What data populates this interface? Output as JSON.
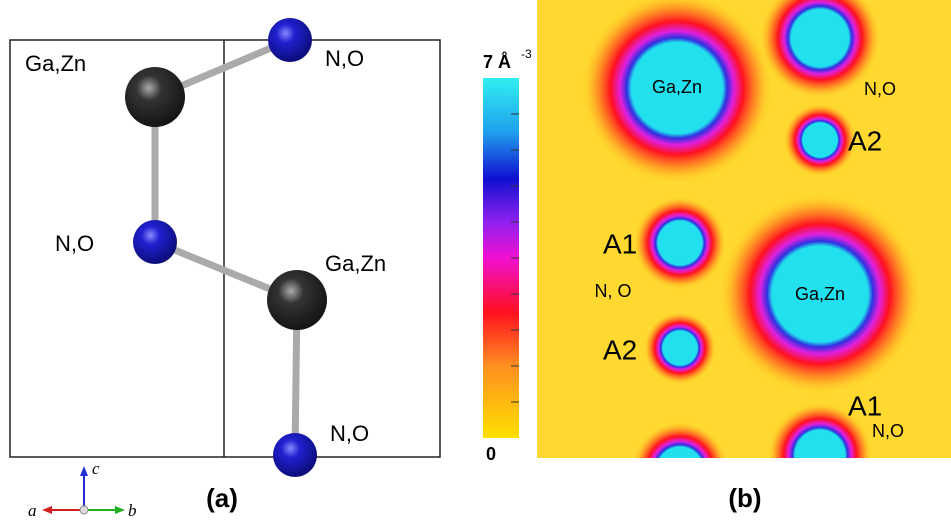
{
  "panel_a": {
    "atoms": [
      {
        "label": "Ga,Zn"
      },
      {
        "label": "N,O"
      },
      {
        "label": "N,O"
      },
      {
        "label": "Ga,Zn"
      },
      {
        "label": "N,O"
      }
    ],
    "axes": {
      "c": "c",
      "a": "a",
      "b": "b"
    },
    "caption": "(a)"
  },
  "panel_b": {
    "colorbar": {
      "max_label": "7 Å",
      "unit_exponent": "-3",
      "min_label": "0"
    },
    "labels": [
      "Ga,Zn",
      "N,O",
      "A2",
      "A1",
      "N, O",
      "Ga,Zn",
      "A2",
      "A1",
      "N,O"
    ],
    "caption": "(b)"
  }
}
